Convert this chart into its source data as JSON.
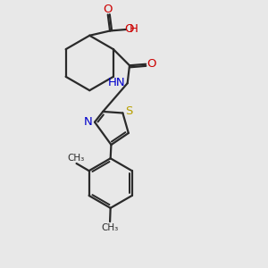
{
  "bg_color": "#e8e8e8",
  "bond_color": "#2a2a2a",
  "S_color": "#b8a000",
  "N_color": "#0000cc",
  "O_color": "#cc0000",
  "line_width": 1.6,
  "figsize": [
    3.0,
    3.0
  ],
  "dpi": 100,
  "xlim": [
    0,
    10
  ],
  "ylim": [
    0,
    10
  ]
}
